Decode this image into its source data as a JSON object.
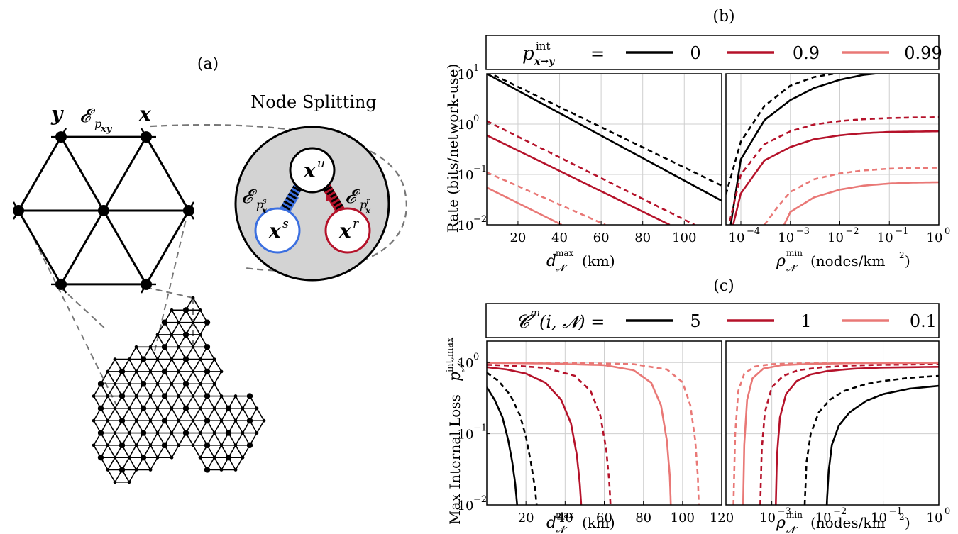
{
  "panel_a": {
    "label": "(a)",
    "callout_title": "Node Splitting",
    "node_y": "y",
    "node_x": "x",
    "edge_label_main": "𝓔",
    "edge_label_main_sub": "p",
    "edge_label_main_subsub": "xy",
    "split_u": "x",
    "split_u_sup": "u",
    "split_s": "x",
    "split_s_sup": "s",
    "split_r": "x",
    "split_r_sup": "r",
    "edge_s": "𝓔",
    "edge_s_sub": "p",
    "edge_s_sup": "s",
    "edge_s_subsub": "x",
    "edge_r": "𝓔",
    "edge_r_sub": "p",
    "edge_r_sup": "r",
    "edge_r_subsub": "x",
    "colors": {
      "s": "#3b6fe0",
      "r": "#b5122a",
      "bubble": "#d3d3d3"
    }
  },
  "panel_b": {
    "label": "(b)",
    "legend_symbol": "p",
    "legend_sup": "int",
    "legend_sub": "x→y",
    "legend_eq": "=",
    "ylabel": "Rate (bits/network-use)"
  },
  "panel_c": {
    "label": "(c)",
    "legend_symbol": "𝓒",
    "legend_sup": "m",
    "legend_args": "(i, 𝓝) =",
    "ylabel": "Max Internal Loss",
    "ylabel_symbol": "p",
    "ylabel_sup": "int,max",
    "ylabel_sub": "𝓝"
  },
  "axes_text": {
    "dmax": "d",
    "dmax_sup": "max",
    "dmax_sub": "𝓝",
    "dmax_unit": "(km)",
    "rho": "ρ",
    "rho_sup": "min",
    "rho_sub": "𝓝",
    "rho_unit": "(nodes/km",
    "rho_unit_sup": "2",
    "rho_unit_end": ")"
  },
  "chart_data": [
    {
      "id": "b-left",
      "type": "line",
      "xscale": "linear",
      "yscale": "log",
      "xlim": [
        5,
        118
      ],
      "ylim": [
        0.01,
        10
      ],
      "xticks": [
        20,
        40,
        60,
        80,
        100
      ],
      "yticks": [
        {
          "v": 10,
          "base": "10",
          "exp": "1"
        },
        {
          "v": 1,
          "base": "10",
          "exp": "0"
        },
        {
          "v": 0.1,
          "base": "10",
          "exp": "−1"
        },
        {
          "v": 0.01,
          "base": "10",
          "exp": "−2"
        }
      ],
      "grid": true,
      "series": [
        {
          "legend": "0",
          "color": "#000000",
          "style": "solid",
          "x": [
            5,
            118
          ],
          "y": [
            10,
            0.03
          ]
        },
        {
          "legend": "0",
          "color": "#000000",
          "style": "dashed",
          "x": [
            5,
            118
          ],
          "y": [
            11,
            0.06
          ]
        },
        {
          "legend": "0.9",
          "color": "#b5122a",
          "style": "solid",
          "x": [
            5,
            93
          ],
          "y": [
            0.6,
            0.01
          ]
        },
        {
          "legend": "0.9",
          "color": "#b5122a",
          "style": "dashed",
          "x": [
            5,
            105
          ],
          "y": [
            1.15,
            0.01
          ]
        },
        {
          "legend": "0.99",
          "color": "#e97876",
          "style": "solid",
          "x": [
            5,
            41
          ],
          "y": [
            0.055,
            0.01
          ]
        },
        {
          "legend": "0.99",
          "color": "#e97876",
          "style": "dashed",
          "x": [
            5,
            62
          ],
          "y": [
            0.11,
            0.01
          ]
        }
      ]
    },
    {
      "id": "b-right",
      "type": "line",
      "xscale": "log",
      "yscale": "log",
      "xlim": [
        5e-05,
        1
      ],
      "ylim": [
        0.01,
        10
      ],
      "xticks": [
        {
          "v": 0.0001,
          "base": "10",
          "exp": "−4"
        },
        {
          "v": 0.001,
          "base": "10",
          "exp": "−3"
        },
        {
          "v": 0.01,
          "base": "10",
          "exp": "−2"
        },
        {
          "v": 0.1,
          "base": "10",
          "exp": "−1"
        },
        {
          "v": 1,
          "base": "10",
          "exp": "0"
        }
      ],
      "grid": true,
      "series": [
        {
          "legend": "0",
          "color": "#000000",
          "style": "solid",
          "amp": 12.0,
          "x0": 6.25e-05,
          "x": [
            6.25e-05,
            0.0001,
            0.0003,
            0.001,
            0.003,
            0.01,
            0.03,
            0.1,
            0.3,
            1
          ],
          "y": [
            0.01,
            0.2,
            1.2,
            3.0,
            5.2,
            7.6,
            9.5,
            10.8,
            11.5,
            12.0
          ]
        },
        {
          "legend": "0",
          "color": "#000000",
          "style": "dashed",
          "x": [
            5e-05,
            0.0001,
            0.0003,
            0.001,
            0.003,
            0.01,
            0.03,
            0.1
          ],
          "y": [
            0.04,
            0.45,
            2.3,
            5.8,
            8.6,
            10.5,
            11.8,
            12.6
          ]
        },
        {
          "legend": "0.9",
          "color": "#b5122a",
          "style": "solid",
          "x": [
            7e-05,
            0.0001,
            0.0003,
            0.001,
            0.003,
            0.01,
            0.03,
            0.1,
            0.3,
            1
          ],
          "y": [
            0.01,
            0.042,
            0.19,
            0.35,
            0.5,
            0.6,
            0.66,
            0.7,
            0.71,
            0.72
          ]
        },
        {
          "legend": "0.9",
          "color": "#b5122a",
          "style": "dashed",
          "x": [
            6e-05,
            0.0001,
            0.0003,
            0.001,
            0.003,
            0.01,
            0.03,
            0.1,
            0.3,
            1
          ],
          "y": [
            0.012,
            0.1,
            0.4,
            0.72,
            0.98,
            1.15,
            1.25,
            1.32,
            1.35,
            1.37
          ]
        },
        {
          "legend": "0.99",
          "color": "#e97876",
          "style": "solid",
          "x": [
            0.00075,
            0.001,
            0.003,
            0.01,
            0.03,
            0.1,
            0.3,
            1
          ],
          "y": [
            0.01,
            0.018,
            0.035,
            0.05,
            0.06,
            0.066,
            0.069,
            0.07
          ]
        },
        {
          "legend": "0.99",
          "color": "#e97876",
          "style": "dashed",
          "x": [
            0.0003,
            0.0006,
            0.001,
            0.003,
            0.01,
            0.03,
            0.1,
            0.3,
            1
          ],
          "y": [
            0.01,
            0.025,
            0.045,
            0.08,
            0.105,
            0.12,
            0.13,
            0.134,
            0.136
          ]
        }
      ]
    },
    {
      "id": "c-left",
      "type": "line",
      "xscale": "linear",
      "yscale": "log",
      "xlim": [
        0,
        120
      ],
      "ylim": [
        0.01,
        2
      ],
      "xticks": [
        20,
        40,
        60,
        80,
        100,
        120
      ],
      "yticks": [
        {
          "v": 1,
          "base": "10",
          "exp": "0"
        },
        {
          "v": 0.1,
          "base": "10",
          "exp": "−1"
        },
        {
          "v": 0.01,
          "base": "10",
          "exp": "−2"
        }
      ],
      "grid": true,
      "series": [
        {
          "legend": "5",
          "color": "#000000",
          "style": "solid",
          "x": [
            0,
            4,
            8,
            11,
            13,
            14.5,
            15.5
          ],
          "y": [
            0.45,
            0.3,
            0.17,
            0.08,
            0.04,
            0.02,
            0.01
          ]
        },
        {
          "legend": "5",
          "color": "#000000",
          "style": "dashed",
          "x": [
            0,
            6,
            12,
            17,
            20,
            22.5,
            24.5,
            25.5
          ],
          "y": [
            0.72,
            0.55,
            0.35,
            0.18,
            0.09,
            0.04,
            0.018,
            0.01
          ]
        },
        {
          "legend": "1",
          "color": "#b5122a",
          "style": "solid",
          "x": [
            0,
            10,
            20,
            30,
            38,
            43,
            46,
            47.5,
            48.2
          ],
          "y": [
            0.86,
            0.8,
            0.7,
            0.52,
            0.3,
            0.14,
            0.05,
            0.02,
            0.01
          ]
        },
        {
          "legend": "1",
          "color": "#b5122a",
          "style": "dashed",
          "x": [
            0,
            15,
            30,
            45,
            53,
            58,
            61,
            62.5,
            63.2
          ],
          "y": [
            0.93,
            0.9,
            0.84,
            0.65,
            0.4,
            0.18,
            0.06,
            0.022,
            0.01
          ]
        },
        {
          "legend": "0.1",
          "color": "#e97876",
          "style": "solid",
          "x": [
            0,
            30,
            60,
            75,
            84,
            89,
            92,
            93.5,
            94
          ],
          "y": [
            0.99,
            0.97,
            0.92,
            0.78,
            0.52,
            0.25,
            0.08,
            0.025,
            0.01
          ]
        },
        {
          "legend": "0.1",
          "color": "#e97876",
          "style": "dashed",
          "x": [
            0,
            40,
            75,
            92,
            100,
            104,
            106.5,
            107.8,
            108.3
          ],
          "y": [
            1.0,
            0.99,
            0.95,
            0.8,
            0.53,
            0.25,
            0.08,
            0.025,
            0.01
          ]
        }
      ]
    },
    {
      "id": "c-right",
      "type": "line",
      "xscale": "log",
      "yscale": "log",
      "xlim": [
        0.00015,
        1
      ],
      "ylim": [
        0.01,
        2
      ],
      "xticks": [
        {
          "v": 0.001,
          "base": "10",
          "exp": "−3"
        },
        {
          "v": 0.01,
          "base": "10",
          "exp": "−2"
        },
        {
          "v": 0.1,
          "base": "10",
          "exp": "−1"
        },
        {
          "v": 1,
          "base": "10",
          "exp": "0"
        }
      ],
      "grid": true,
      "series": [
        {
          "legend": "5",
          "color": "#000000",
          "style": "solid",
          "x": [
            0.0097,
            0.0105,
            0.012,
            0.016,
            0.025,
            0.05,
            0.1,
            0.3,
            1
          ],
          "y": [
            0.01,
            0.03,
            0.07,
            0.13,
            0.2,
            0.29,
            0.36,
            0.43,
            0.47
          ]
        },
        {
          "legend": "5",
          "color": "#000000",
          "style": "dashed",
          "x": [
            0.0039,
            0.0042,
            0.005,
            0.007,
            0.011,
            0.02,
            0.05,
            0.1,
            0.3,
            1
          ],
          "y": [
            0.01,
            0.04,
            0.1,
            0.2,
            0.3,
            0.4,
            0.5,
            0.55,
            0.61,
            0.65
          ]
        },
        {
          "legend": "1",
          "color": "#b5122a",
          "style": "solid",
          "x": [
            0.00118,
            0.00124,
            0.0014,
            0.0018,
            0.0028,
            0.005,
            0.01,
            0.03,
            0.1,
            1
          ],
          "y": [
            0.01,
            0.05,
            0.17,
            0.36,
            0.55,
            0.68,
            0.76,
            0.82,
            0.85,
            0.87
          ]
        },
        {
          "legend": "1",
          "color": "#b5122a",
          "style": "dashed",
          "x": [
            0.00062,
            0.00066,
            0.00075,
            0.001,
            0.0016,
            0.003,
            0.008,
            0.03,
            0.1,
            1
          ],
          "y": [
            0.01,
            0.06,
            0.2,
            0.45,
            0.65,
            0.78,
            0.86,
            0.91,
            0.93,
            0.95
          ]
        },
        {
          "legend": "0.1",
          "color": "#e97876",
          "style": "solid",
          "x": [
            0.000305,
            0.00032,
            0.00036,
            0.00045,
            0.0007,
            0.0015,
            0.005,
            0.03,
            1
          ],
          "y": [
            0.01,
            0.07,
            0.3,
            0.6,
            0.82,
            0.92,
            0.96,
            0.98,
            0.99
          ]
        },
        {
          "legend": "0.1",
          "color": "#e97876",
          "style": "dashed",
          "x": [
            0.000205,
            0.00022,
            0.00025,
            0.00032,
            0.0005,
            0.001,
            0.005,
            0.03,
            1
          ],
          "y": [
            0.01,
            0.1,
            0.4,
            0.7,
            0.88,
            0.95,
            0.98,
            0.99,
            1.0
          ]
        }
      ]
    }
  ],
  "legend_b": [
    {
      "label": "0",
      "color": "#000000"
    },
    {
      "label": "0.9",
      "color": "#b5122a"
    },
    {
      "label": "0.99",
      "color": "#e97876"
    }
  ],
  "legend_c": [
    {
      "label": "5",
      "color": "#000000"
    },
    {
      "label": "1",
      "color": "#b5122a"
    },
    {
      "label": "0.1",
      "color": "#e97876"
    }
  ]
}
